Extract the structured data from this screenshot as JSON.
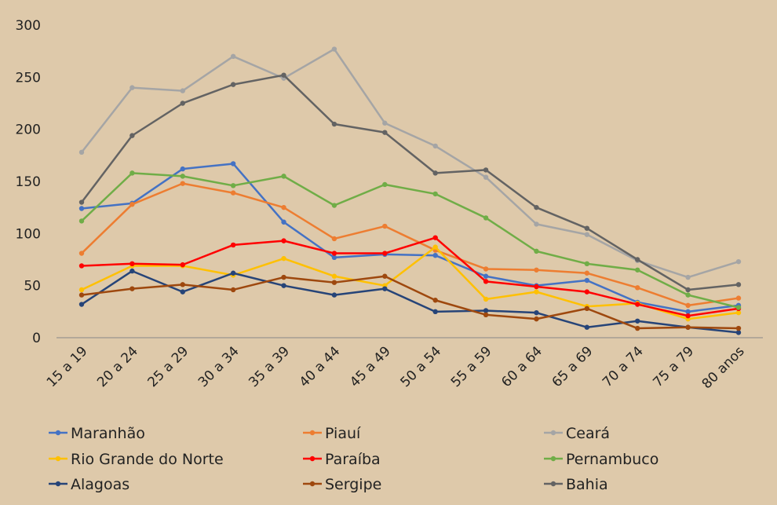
{
  "chart_data": {
    "type": "line",
    "title": "",
    "xlabel": "",
    "ylabel": "",
    "ylim": [
      0,
      300
    ],
    "yticks": [
      0,
      50,
      100,
      150,
      200,
      250,
      300
    ],
    "grid": false,
    "legend_placement": "bottom",
    "categories": [
      "15 a 19",
      "20 a 24",
      "25 a 29",
      "30 a 34",
      "35 a 39",
      "40 a 44",
      "45 a 49",
      "50 a 54",
      "55 a 59",
      "60 a 64",
      "65 a 69",
      "70 a 74",
      "75 a 79",
      "80 anos"
    ],
    "series": [
      {
        "name": "Maranhão",
        "color": "#4472C4",
        "values": [
          124,
          129,
          162,
          167,
          111,
          77,
          80,
          79,
          59,
          50,
          55,
          34,
          25,
          31
        ]
      },
      {
        "name": "Piauí",
        "color": "#ED7D31",
        "values": [
          81,
          128,
          148,
          139,
          125,
          95,
          107,
          84,
          66,
          65,
          62,
          48,
          31,
          38
        ]
      },
      {
        "name": "Ceará",
        "color": "#A5A5A5",
        "values": [
          178,
          240,
          237,
          270,
          249,
          277,
          206,
          184,
          154,
          109,
          99,
          74,
          58,
          73
        ]
      },
      {
        "name": "Rio Grande do Norte",
        "color": "#FFC000",
        "values": [
          46,
          69,
          69,
          60,
          76,
          59,
          50,
          87,
          37,
          44,
          30,
          33,
          18,
          24
        ]
      },
      {
        "name": "Paraíba",
        "color": "#FF0000",
        "values": [
          69,
          71,
          70,
          89,
          93,
          81,
          81,
          96,
          54,
          49,
          44,
          32,
          21,
          28
        ]
      },
      {
        "name": "Pernambuco",
        "color": "#70AD47",
        "values": [
          112,
          158,
          155,
          146,
          155,
          127,
          147,
          138,
          115,
          83,
          71,
          65,
          41,
          29
        ]
      },
      {
        "name": "Alagoas",
        "color": "#264478",
        "values": [
          32,
          64,
          44,
          62,
          50,
          41,
          47,
          25,
          26,
          24,
          10,
          16,
          10,
          5
        ]
      },
      {
        "name": "Sergipe",
        "color": "#9E480E",
        "values": [
          41,
          47,
          51,
          46,
          58,
          53,
          59,
          36,
          22,
          18,
          28,
          9,
          10,
          9
        ]
      },
      {
        "name": "Bahia",
        "color": "#636363",
        "values": [
          130,
          194,
          225,
          243,
          252,
          205,
          197,
          158,
          161,
          125,
          105,
          75,
          46,
          51
        ]
      }
    ]
  }
}
